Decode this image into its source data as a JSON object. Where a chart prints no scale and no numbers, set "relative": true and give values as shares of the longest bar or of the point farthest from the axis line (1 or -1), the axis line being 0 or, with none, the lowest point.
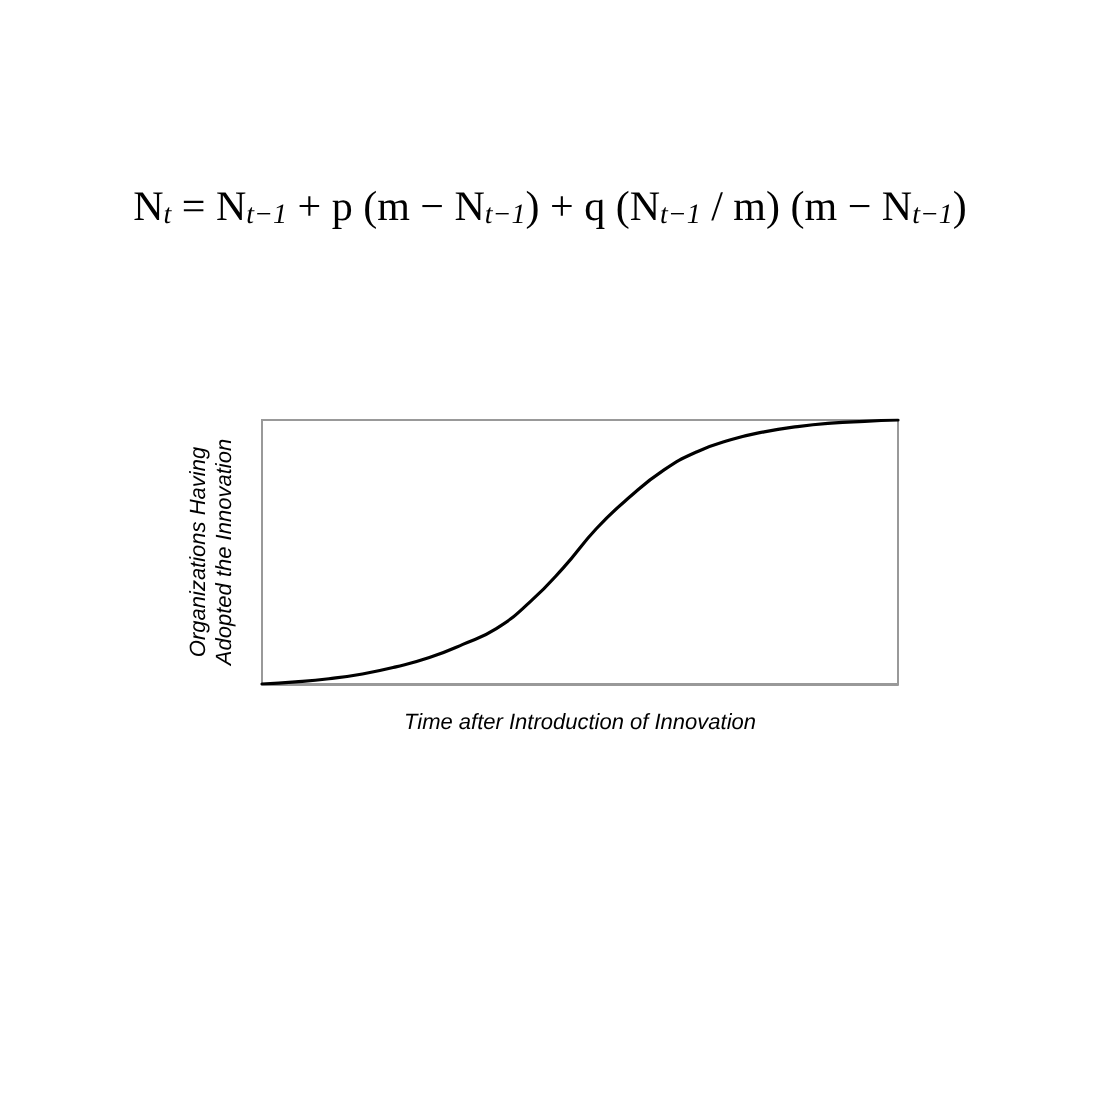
{
  "chart_data": {
    "type": "line",
    "title": "N$_{t}$ = N$_{t−1}$ + p (m − N$_{t−1}$) + q (N$_{t−1}$ / m) (m − N$_{t−1}$)",
    "xlabel": "Time after Introduction of Innovation",
    "ylabel": "Organizations Having\nAdopted the Innovation",
    "relative": true,
    "categories": [
      null,
      null,
      null,
      null,
      null,
      null,
      null,
      null,
      null,
      null,
      null,
      null,
      null,
      null,
      null,
      null,
      null,
      null,
      null,
      null
    ],
    "series": [
      {
        "color": "#000000",
        "values": [
          0,
          0.008,
          0.02,
          0.038,
          0.065,
          0.1,
          0.15,
          0.21,
          0.31,
          0.44,
          0.59,
          0.71,
          0.81,
          0.88,
          0.925,
          0.955,
          0.975,
          0.988,
          0.995,
          1
        ]
      }
    ],
    "marker": "none",
    "grid": false
  }
}
